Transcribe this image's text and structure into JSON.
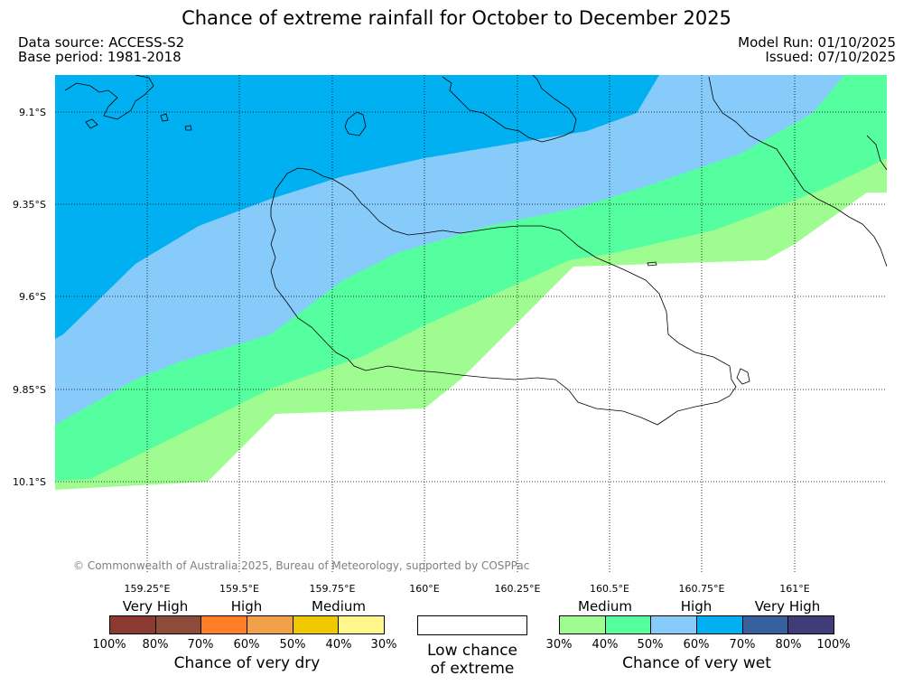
{
  "title": "Chance of extreme rainfall for October to December 2025",
  "meta": {
    "data_source": "Data source: ACCESS-S2",
    "base_period": "Base period: 1981-2018",
    "model_run": "Model Run: 01/10/2025",
    "issued": "Issued: 07/10/2025"
  },
  "map": {
    "lat_ticks": [
      "9.1°S",
      "9.35°S",
      "9.6°S",
      "9.85°S",
      "10.1°S"
    ],
    "lon_ticks": [
      "159.25°E",
      "159.5°E",
      "159.75°E",
      "160°E",
      "160.25°E",
      "160.5°E",
      "160.75°E",
      "161°E"
    ],
    "zone_colors": {
      "wet_70_80": "#00b0f0",
      "wet_60_70": "#87cbfb",
      "wet_40_50": "#55ff9f",
      "wet_30_40": "#9efc91",
      "low": "#ffffff"
    },
    "copyright": "© Commonwealth of Australia 2025, Bureau of Meteorology, supported by COSPPac"
  },
  "legend": {
    "dry": {
      "levels": [
        "Very High",
        "High",
        "Medium"
      ],
      "colors": [
        "#8b3a32",
        "#8b4c3c",
        "#ff7e26",
        "#f0a048",
        "#f0c800",
        "#fff68c"
      ],
      "ticks": [
        "100%",
        "80%",
        "70%",
        "60%",
        "50%",
        "40%",
        "30%"
      ],
      "caption": "Chance of very dry"
    },
    "neutral": {
      "caption_line1": "Low chance",
      "caption_line2": "of extreme"
    },
    "wet": {
      "levels": [
        "Medium",
        "High",
        "Very High"
      ],
      "colors": [
        "#9efc91",
        "#55ff9f",
        "#87cbfb",
        "#00b0f0",
        "#37609c",
        "#403c78"
      ],
      "ticks": [
        "30%",
        "40%",
        "50%",
        "60%",
        "70%",
        "80%",
        "100%"
      ],
      "caption": "Chance of very wet"
    }
  }
}
